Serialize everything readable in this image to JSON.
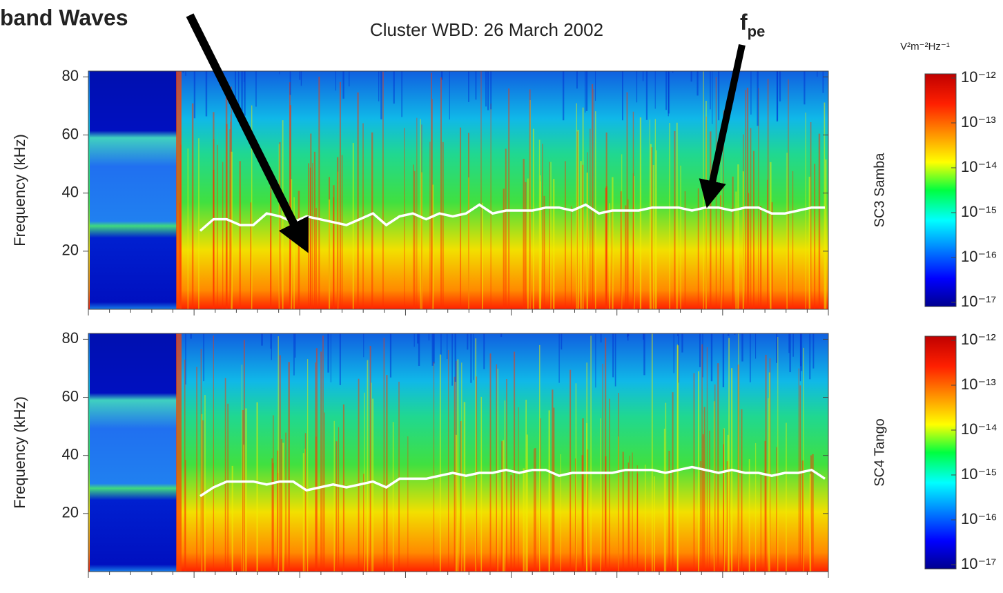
{
  "chart_data": [
    {
      "type": "spectrogram",
      "title": "Cluster WBD:  26 March 2002",
      "ylabel": "Frequency (kHz)",
      "panel_label": "SC3 Samba",
      "ylim": [
        0,
        82
      ],
      "yticks": [
        20,
        40,
        60,
        80
      ],
      "annotations": [
        {
          "text": "band Waves"
        },
        {
          "text": "f",
          "subscript": "pe"
        }
      ],
      "line": {
        "color": "#ffffff",
        "values": [
          27,
          31,
          31,
          29,
          29,
          33,
          32,
          30,
          32,
          31,
          30,
          29,
          31,
          33,
          29,
          32,
          33,
          31,
          33,
          32,
          33,
          36,
          33,
          34,
          34,
          34,
          35,
          35,
          34,
          36,
          33,
          34,
          34,
          34,
          35,
          35,
          35,
          34,
          35,
          35,
          34,
          35,
          35,
          33,
          33,
          34,
          35,
          35
        ]
      },
      "colorbar": {
        "title": "V²m⁻²Hz⁻¹",
        "log": true,
        "lim": [
          1e-17,
          1e-12
        ],
        "ticks": [
          {
            "value": 1e-12,
            "label": "10⁻¹²"
          },
          {
            "value": 1e-13,
            "label": "10⁻¹³"
          },
          {
            "value": 1e-14,
            "label": "10⁻¹⁴"
          },
          {
            "value": 1e-15,
            "label": "10⁻¹⁵"
          },
          {
            "value": 1e-16,
            "label": "10⁻¹⁶"
          },
          {
            "value": 1e-17,
            "label": "10⁻¹⁷"
          }
        ]
      }
    },
    {
      "type": "spectrogram",
      "ylabel": "Frequency (kHz)",
      "panel_label": "SC4 Tango",
      "ylim": [
        0,
        82
      ],
      "yticks": [
        20,
        40,
        60,
        80
      ],
      "line": {
        "color": "#ffffff",
        "values": [
          26,
          29,
          31,
          31,
          31,
          30,
          31,
          31,
          28,
          29,
          30,
          29,
          30,
          31,
          29,
          32,
          32,
          32,
          33,
          34,
          33,
          34,
          34,
          35,
          34,
          35,
          35,
          33,
          34,
          34,
          34,
          34,
          35,
          35,
          35,
          34,
          35,
          36,
          35,
          34,
          35,
          34,
          34,
          33,
          34,
          34,
          35,
          32
        ]
      },
      "colorbar": {
        "log": true,
        "lim": [
          1e-17,
          1e-12
        ],
        "ticks": [
          {
            "value": 1e-12,
            "label": "10⁻¹²"
          },
          {
            "value": 1e-13,
            "label": "10⁻¹³"
          },
          {
            "value": 1e-14,
            "label": "10⁻¹⁴"
          },
          {
            "value": 1e-15,
            "label": "10⁻¹⁵"
          },
          {
            "value": 1e-16,
            "label": "10⁻¹⁶"
          },
          {
            "value": 1e-17,
            "label": "10⁻¹⁷"
          }
        ]
      }
    }
  ]
}
